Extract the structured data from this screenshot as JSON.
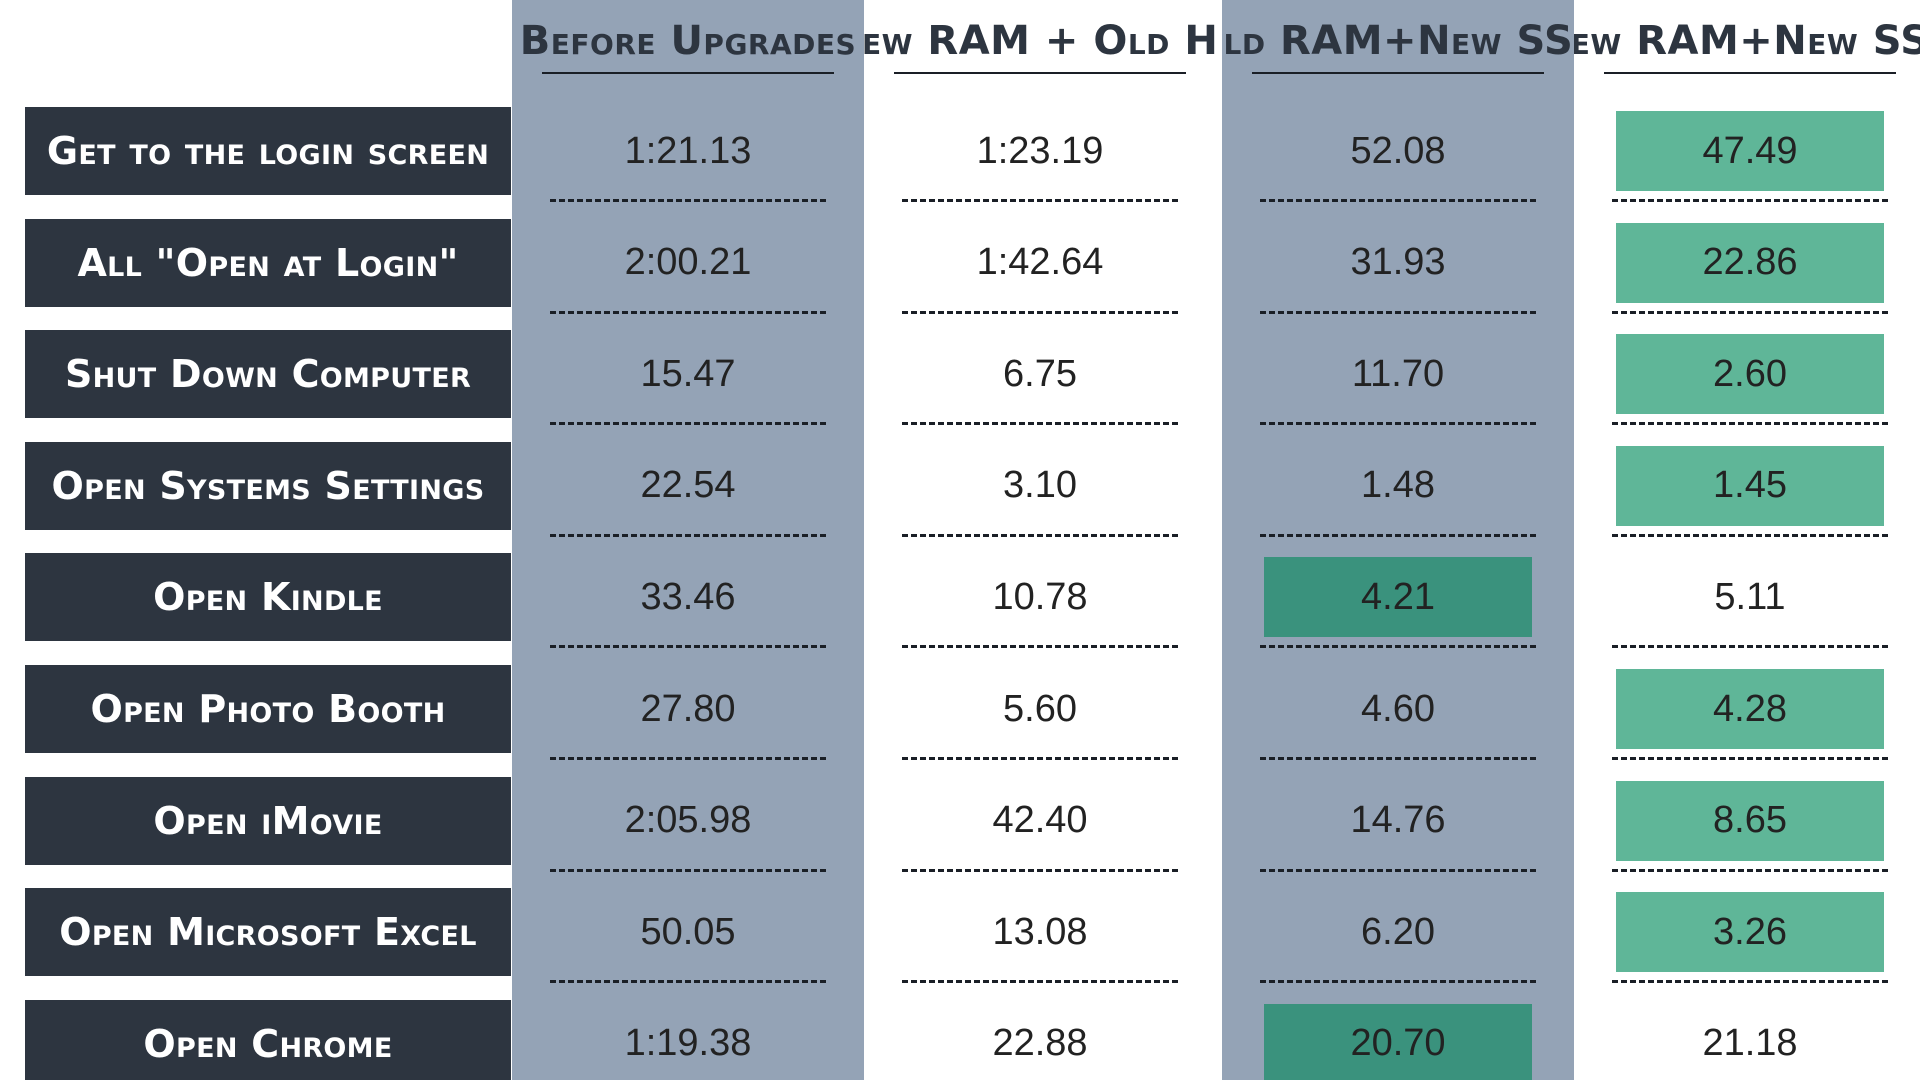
{
  "chart_data": {
    "type": "table",
    "columns": [
      "Before Upgrades",
      "New RAM + Old HD",
      "Old RAM+New SSD",
      "New RAM+New SSD"
    ],
    "rows": [
      {
        "label": "Get to the login screen",
        "values": [
          "1:21.13",
          "1:23.19",
          "52.08",
          "47.49"
        ],
        "highlight": [
          3
        ]
      },
      {
        "label": "All \"Open at Login\"",
        "values": [
          "2:00.21",
          "1:42.64",
          "31.93",
          "22.86"
        ],
        "highlight": [
          3
        ]
      },
      {
        "label": "Shut Down Computer",
        "values": [
          "15.47",
          "6.75",
          "11.70",
          "2.60"
        ],
        "highlight": [
          3
        ]
      },
      {
        "label": "Open Systems Settings",
        "values": [
          "22.54",
          "3.10",
          "1.48",
          "1.45"
        ],
        "highlight": [
          3
        ]
      },
      {
        "label": "Open Kindle",
        "values": [
          "33.46",
          "10.78",
          "4.21",
          "5.11"
        ],
        "highlight": [
          2
        ]
      },
      {
        "label": "Open Photo Booth",
        "values": [
          "27.80",
          "5.60",
          "4.60",
          "4.28"
        ],
        "highlight": [
          3
        ]
      },
      {
        "label": "Open iMovie",
        "values": [
          "2:05.98",
          "42.40",
          "14.76",
          "8.65"
        ],
        "highlight": [
          3
        ]
      },
      {
        "label": "Open Microsoft Excel",
        "values": [
          "50.05",
          "13.08",
          "6.20",
          "3.26"
        ],
        "highlight": [
          3
        ]
      },
      {
        "label": "Open Chrome",
        "values": [
          "1:19.38",
          "22.88",
          "20.70",
          "21.18"
        ],
        "highlight": [
          2
        ]
      }
    ],
    "shaded_columns": [
      0,
      2
    ]
  },
  "colors": {
    "label_background": "#2d3540",
    "label_text": "#ffffff",
    "shaded_column": "#94a3b6",
    "highlight_light": "#5fb698",
    "highlight_dark": "#3a927d",
    "header_text": "#2d3540",
    "value_text": "#222222"
  }
}
